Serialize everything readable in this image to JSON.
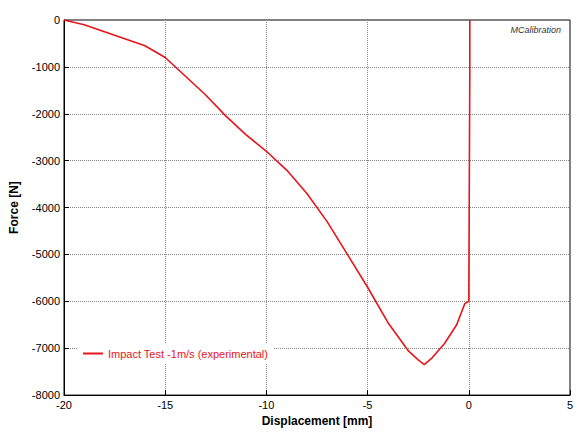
{
  "chart_data": {
    "type": "line",
    "x_label": "Displacement [mm]",
    "y_label": "Force [N]",
    "annotations": [
      "MCalibration"
    ],
    "x": [
      -20,
      -19,
      -18,
      -17,
      -16,
      -15,
      -14,
      -13,
      -12,
      -11,
      -10,
      -9,
      -8,
      -7,
      -6,
      -5,
      -4,
      -3,
      -2.5,
      -2.2,
      -1.8,
      -1.2,
      -0.6,
      -0.2,
      0,
      0.05,
      0.05
    ],
    "series": [
      {
        "name": "Impact Test -1m/s (experimental)",
        "color": "#e8141c",
        "values": [
          0,
          -100,
          -250,
          -400,
          -550,
          -800,
          -1200,
          -1600,
          -2050,
          -2450,
          -2800,
          -3200,
          -3700,
          -4300,
          -5000,
          -5700,
          -6450,
          -7050,
          -7250,
          -7350,
          -7200,
          -6900,
          -6500,
          -6050,
          -6000,
          -1000,
          0
        ]
      }
    ],
    "xlim": [
      -20,
      5
    ],
    "xticks": [
      -20,
      -15,
      -10,
      -5,
      0,
      5
    ],
    "ylim": [
      -8000,
      0
    ],
    "yticks": [
      -8000,
      -7000,
      -6000,
      -5000,
      -4000,
      -3000,
      -2000,
      -1000,
      0
    ],
    "grid": true,
    "legend": "lower left"
  }
}
